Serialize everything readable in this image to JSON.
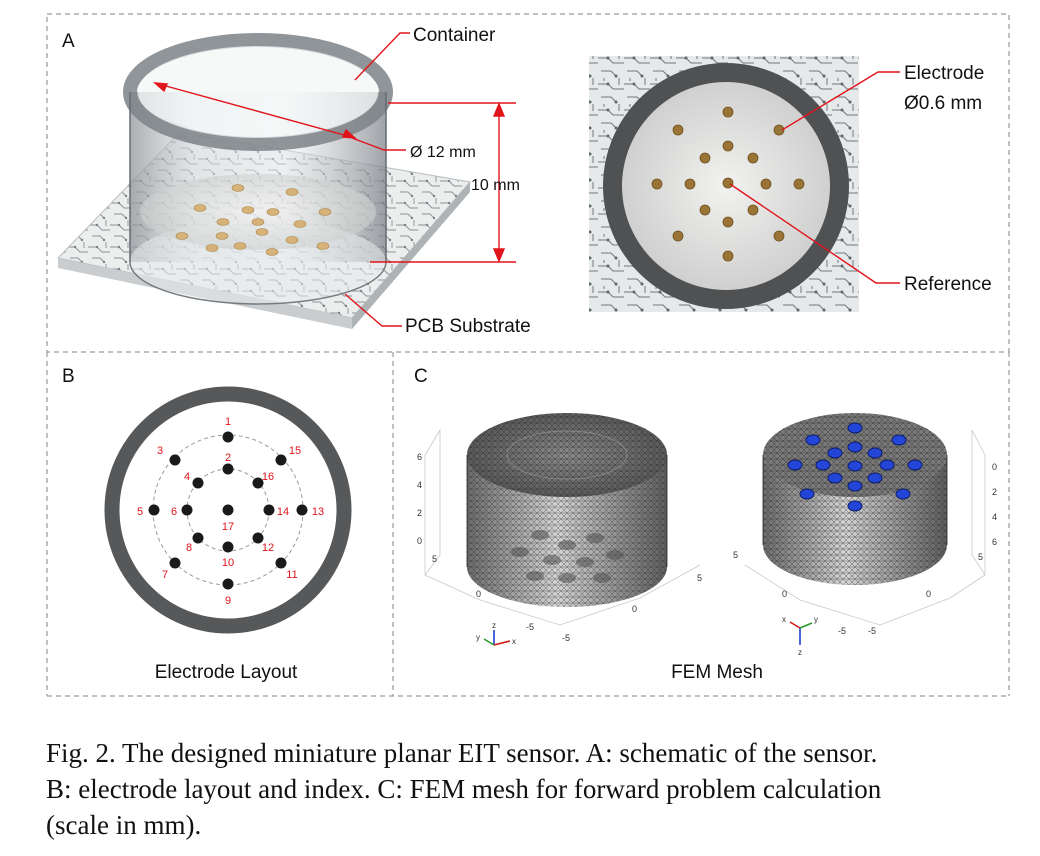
{
  "panels": {
    "a": {
      "letter": "A",
      "labels": {
        "container": "Container",
        "diameter": "Ø 12 mm",
        "height": "10 mm",
        "pcb": "PCB Substrate",
        "electrode": "Electrode",
        "electrode_size": "Ø0.6 mm",
        "reference": "Reference"
      }
    },
    "b": {
      "letter": "B",
      "title": "Electrode Layout",
      "electrode_indices": [
        "1",
        "2",
        "3",
        "4",
        "5",
        "6",
        "7",
        "8",
        "9",
        "10",
        "11",
        "12",
        "13",
        "14",
        "15",
        "16",
        "17"
      ]
    },
    "c": {
      "letter": "C",
      "title": "FEM Mesh",
      "left_axis": {
        "z_ticks": [
          "6",
          "4",
          "2",
          "0"
        ],
        "x_ticks": [
          "5",
          "0",
          "-5"
        ],
        "y_ticks": [
          "5",
          "0",
          "-5"
        ]
      },
      "right_axis": {
        "z_ticks": [
          "0",
          "2",
          "4",
          "6"
        ],
        "x_ticks": [
          "5",
          "0",
          "-5"
        ],
        "y_ticks": [
          "5",
          "0",
          "-5"
        ]
      },
      "triad_labels": {
        "x": "x",
        "y": "y",
        "z": "z"
      }
    }
  },
  "caption": {
    "line1": "Fig. 2.  The designed miniature planar EIT sensor. A: schematic of the sensor.",
    "line2": "B: electrode layout and index. C: FEM mesh for forward problem calculation",
    "line3": "(scale in mm)."
  },
  "colors": {
    "annotation": "#e1141b",
    "electrode_gold": "#c09a55",
    "mesh_electrode": "#1e3fd0",
    "ring": "#575859"
  }
}
